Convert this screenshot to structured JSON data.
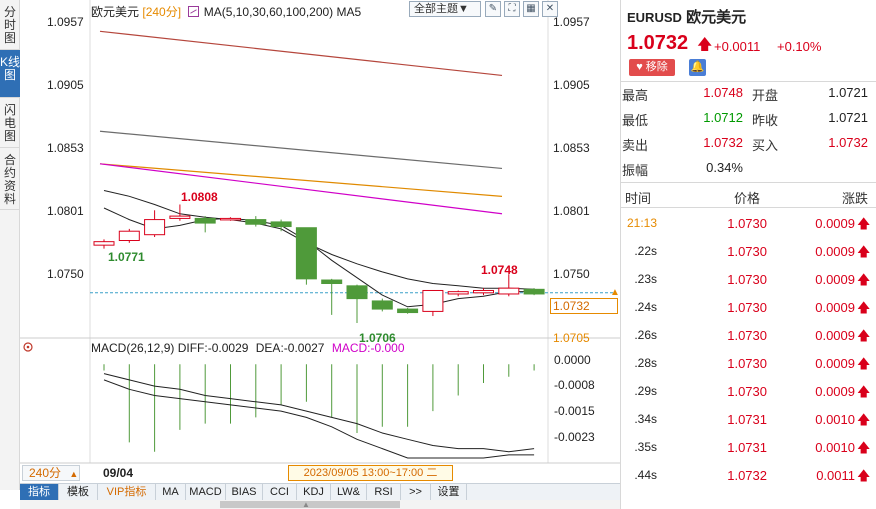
{
  "left_tabs": [
    "分时图",
    "K线图",
    "闪电图",
    "合约资料"
  ],
  "left_tabs_active": 1,
  "chart": {
    "name": "欧元美元",
    "period": "[240分]",
    "ma_label": "MA(5,10,30,60,100,200)",
    "ma5_label": "MA5",
    "theme_button": "全部主题▼",
    "current_price_tag": "1.0732",
    "high_annotation": "1.0808",
    "low_annotation": "1.0771",
    "high2_annotation": "1.0748",
    "low2_annotation": "1.0706",
    "right_axis_low": "1.0705",
    "macd_label": "MACD(26,12,9)",
    "diff_label": "DIFF:-0.0029",
    "dea_label": "DEA:-0.0027",
    "macd_value_label": "MACD:-0.000",
    "period_button": "240分",
    "date_label": "09/04",
    "time_range": "2023/09/05 13:00~17:00 二",
    "y_ticks": [
      "1.0957",
      "1.0905",
      "1.0853",
      "1.0801",
      "1.0750"
    ],
    "y_ticks_right": [
      "1.0957",
      "1.0905",
      "1.0853",
      "1.0801",
      "1.0750"
    ],
    "macd_ticks": [
      "0.0000",
      "-0.0008",
      "-0.0015",
      "-0.0023"
    ]
  },
  "colors": {
    "up": "#d9001b",
    "down": "#4f9a3a",
    "ma_gray": "#6c6c6c",
    "ma_red": "#b5463c",
    "ma_orange": "#e08a00",
    "ma_magenta": "#d000c8",
    "ma_black": "#222222",
    "accent_blue": "#2f6fb5"
  },
  "chart_data": {
    "type": "candlestick",
    "candles": [
      {
        "open": 1.0773,
        "close": 1.0776,
        "high": 1.0778,
        "low": 1.077
      },
      {
        "open": 1.0777,
        "close": 1.0785,
        "high": 1.0787,
        "low": 1.0775
      },
      {
        "open": 1.0782,
        "close": 1.0795,
        "high": 1.0803,
        "low": 1.078
      },
      {
        "open": 1.0796,
        "close": 1.0798,
        "high": 1.0808,
        "low": 1.0794
      },
      {
        "open": 1.0796,
        "close": 1.0792,
        "high": 1.0798,
        "low": 1.0784
      },
      {
        "open": 1.0795,
        "close": 1.0796,
        "high": 1.0797,
        "low": 1.0794
      },
      {
        "open": 1.0795,
        "close": 1.0791,
        "high": 1.0798,
        "low": 1.0789
      },
      {
        "open": 1.0793,
        "close": 1.0789,
        "high": 1.0795,
        "low": 1.0785
      },
      {
        "open": 1.0788,
        "close": 1.0744,
        "high": 1.0788,
        "low": 1.0739
      },
      {
        "open": 1.0743,
        "close": 1.074,
        "high": 1.0744,
        "low": 1.0713
      },
      {
        "open": 1.0738,
        "close": 1.0727,
        "high": 1.0739,
        "low": 1.0706
      },
      {
        "open": 1.0725,
        "close": 1.0718,
        "high": 1.0727,
        "low": 1.0716
      },
      {
        "open": 1.0718,
        "close": 1.0715,
        "high": 1.0719,
        "low": 1.0714
      },
      {
        "open": 1.0716,
        "close": 1.0734,
        "high": 1.0734,
        "low": 1.0712
      },
      {
        "open": 1.0731,
        "close": 1.0733,
        "high": 1.0734,
        "low": 1.0729
      },
      {
        "open": 1.0732,
        "close": 1.0734,
        "high": 1.0736,
        "low": 1.073
      },
      {
        "open": 1.0731,
        "close": 1.0736,
        "high": 1.0748,
        "low": 1.0729
      },
      {
        "open": 1.0735,
        "close": 1.0731,
        "high": 1.0736,
        "low": 1.073
      }
    ],
    "ma_lines": [
      {
        "color": "#b5463c",
        "y_start": 1.0957,
        "y_end": 1.0919
      },
      {
        "color": "#6c6c6c",
        "y_start": 1.0871,
        "y_end": 1.0839
      },
      {
        "color": "#e08a00",
        "y_start": 1.0843,
        "y_end": 1.0815
      },
      {
        "color": "#d000c8",
        "y_start": 1.0843,
        "y_end": 1.08
      },
      {
        "color": "#222222",
        "points": [
          1.082,
          1.0815,
          1.0808,
          1.08,
          1.0797,
          1.0795,
          1.0792,
          1.0787,
          1.0775,
          1.0765,
          1.0757,
          1.075,
          1.0744,
          1.074,
          1.0738,
          1.0736,
          1.0736,
          1.0735
        ]
      },
      {
        "color": "#222222",
        "points": [
          1.0805,
          1.0795,
          1.0787,
          1.079,
          1.0795,
          1.0796,
          1.0794,
          1.079,
          1.0777,
          1.076,
          1.0745,
          1.073,
          1.072,
          1.0722,
          1.0727,
          1.0729,
          1.0733,
          1.0733
        ]
      }
    ],
    "macd": {
      "hist": [
        -0.0002,
        -0.0025,
        -0.0028,
        -0.0021,
        -0.0019,
        -0.0019,
        -0.0017,
        -0.0013,
        -0.0012,
        -0.0017,
        -0.0022,
        -0.002,
        -0.002,
        -0.0015,
        -0.001,
        -0.0006,
        -0.0004,
        -0.0002
      ],
      "diff": [
        -0.0005,
        -0.0008,
        -0.001,
        -0.0011,
        -0.0012,
        -0.0013,
        -0.0014,
        -0.0015,
        -0.0017,
        -0.002,
        -0.0024,
        -0.0027,
        -0.003,
        -0.003,
        -0.003,
        -0.003,
        -0.0029,
        -0.0029
      ],
      "dea": [
        -0.0003,
        -0.0005,
        -0.0007,
        -0.0008,
        -0.001,
        -0.0011,
        -0.0012,
        -0.0013,
        -0.0015,
        -0.0017,
        -0.0019,
        -0.0022,
        -0.0024,
        -0.0026,
        -0.0027,
        -0.0027,
        -0.0028,
        -0.0027
      ]
    },
    "ylim": [
      1.07,
      1.0965
    ],
    "macd_ylim": [
      -0.003,
      0.0002
    ]
  },
  "bottom_tabs": [
    "指标",
    "模板",
    "VIP指标",
    "MA",
    "MACD",
    "BIAS",
    "CCI",
    "KDJ",
    "LW&",
    "RSI",
    ">>",
    "设置"
  ],
  "quote": {
    "symbol": "EURUSD",
    "name": "欧元美元",
    "price": "1.0732",
    "change": "+0.0011",
    "change_pct": "+0.10%",
    "remove_label": "移除",
    "stats": [
      {
        "label": "最高",
        "value": "1.0748",
        "label2": "开盘",
        "value2": "1.0721"
      },
      {
        "label": "最低",
        "value": "1.0712",
        "label2": "昨收",
        "value2": "1.0721"
      },
      {
        "label": "卖出",
        "value": "1.0732",
        "label2": "买入",
        "value2": "1.0732"
      }
    ],
    "amplitude_label": "振幅",
    "amplitude": "0.34%",
    "headers": [
      "时间",
      "价格",
      "涨跌"
    ],
    "ticks": [
      {
        "time": "21:13",
        "price": "1.0730",
        "chg": "0.0009"
      },
      {
        "time": ".22s",
        "price": "1.0730",
        "chg": "0.0009"
      },
      {
        "time": ".23s",
        "price": "1.0730",
        "chg": "0.0009"
      },
      {
        "time": ".24s",
        "price": "1.0730",
        "chg": "0.0009"
      },
      {
        "time": ".26s",
        "price": "1.0730",
        "chg": "0.0009"
      },
      {
        "time": ".28s",
        "price": "1.0730",
        "chg": "0.0009"
      },
      {
        "time": ".29s",
        "price": "1.0730",
        "chg": "0.0009"
      },
      {
        "time": ".34s",
        "price": "1.0731",
        "chg": "0.0010"
      },
      {
        "time": ".35s",
        "price": "1.0731",
        "chg": "0.0010"
      },
      {
        "time": ".44s",
        "price": "1.0732",
        "chg": "0.0011"
      }
    ]
  }
}
